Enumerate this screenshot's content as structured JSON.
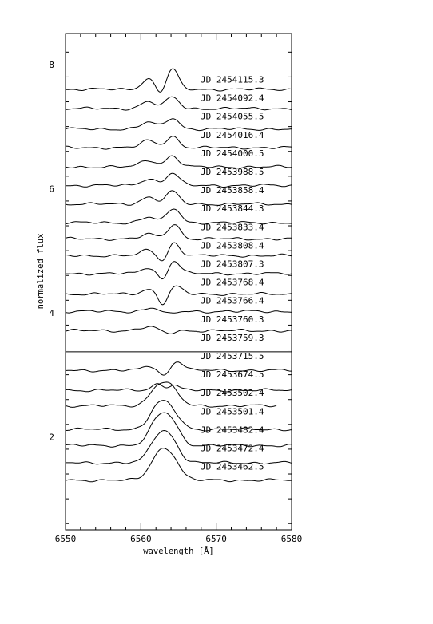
{
  "chart_data": {
    "type": "line",
    "title": "",
    "xlabel": "wavelength [Å]",
    "ylabel": "normalized flux",
    "xlim": [
      6550,
      6580
    ],
    "ylim": [
      0.5,
      8.5
    ],
    "x_ticks": [
      6550,
      6560,
      6570,
      6580
    ],
    "y_ticks": [
      2,
      4,
      6,
      8
    ],
    "grid": false,
    "separator_y": 3.37,
    "series": [
      {
        "name": "JD 2454115.3",
        "baseline": 7.6,
        "right_end": 6580,
        "features": [
          {
            "c": 6561.0,
            "a": 0.17,
            "w": 0.9
          },
          {
            "c": 6562.6,
            "a": -0.1,
            "w": 0.6
          },
          {
            "c": 6564.2,
            "a": 0.33,
            "w": 0.75
          }
        ]
      },
      {
        "name": "JD 2454092.4",
        "baseline": 7.29,
        "right_end": 6580,
        "features": [
          {
            "c": 6561.0,
            "a": 0.11,
            "w": 1.0
          },
          {
            "c": 6564.2,
            "a": 0.18,
            "w": 0.85
          }
        ]
      },
      {
        "name": "JD 2454055.5",
        "baseline": 6.96,
        "right_end": 6580,
        "features": [
          {
            "c": 6561.0,
            "a": 0.11,
            "w": 1.0
          },
          {
            "c": 6564.2,
            "a": 0.18,
            "w": 0.85
          }
        ]
      },
      {
        "name": "JD 2454016.4",
        "baseline": 6.66,
        "right_end": 6580,
        "features": [
          {
            "c": 6561.0,
            "a": 0.11,
            "w": 1.0
          },
          {
            "c": 6564.2,
            "a": 0.18,
            "w": 0.85
          }
        ]
      },
      {
        "name": "JD 2454000.5",
        "baseline": 6.35,
        "right_end": 6580,
        "features": [
          {
            "c": 6561.0,
            "a": 0.11,
            "w": 1.0
          },
          {
            "c": 6564.2,
            "a": 0.18,
            "w": 0.85
          }
        ]
      },
      {
        "name": "JD 2453988.5",
        "baseline": 6.05,
        "right_end": 6580,
        "features": [
          {
            "c": 6561.0,
            "a": 0.11,
            "w": 1.0
          },
          {
            "c": 6564.2,
            "a": 0.2,
            "w": 0.85
          }
        ]
      },
      {
        "name": "JD 2453858.4",
        "baseline": 5.75,
        "right_end": 6580,
        "features": [
          {
            "c": 6561.0,
            "a": 0.11,
            "w": 1.0
          },
          {
            "c": 6564.2,
            "a": 0.2,
            "w": 0.85
          }
        ]
      },
      {
        "name": "JD 2453844.3",
        "baseline": 5.45,
        "right_end": 6580,
        "features": [
          {
            "c": 6561.0,
            "a": 0.09,
            "w": 1.0
          },
          {
            "c": 6564.4,
            "a": 0.23,
            "w": 0.85
          }
        ]
      },
      {
        "name": "JD 2453833.4",
        "baseline": 5.19,
        "right_end": 6580,
        "features": [
          {
            "c": 6561.0,
            "a": 0.07,
            "w": 1.0
          },
          {
            "c": 6564.4,
            "a": 0.23,
            "w": 0.85
          }
        ]
      },
      {
        "name": "JD 2453808.4",
        "baseline": 4.92,
        "right_end": 6580,
        "features": [
          {
            "c": 6561.0,
            "a": 0.09,
            "w": 0.9
          },
          {
            "c": 6562.9,
            "a": -0.12,
            "w": 0.6
          },
          {
            "c": 6564.4,
            "a": 0.21,
            "w": 0.8
          }
        ]
      },
      {
        "name": "JD 2453807.3",
        "baseline": 4.63,
        "right_end": 6580,
        "features": [
          {
            "c": 6561.0,
            "a": 0.1,
            "w": 0.9
          },
          {
            "c": 6562.9,
            "a": -0.13,
            "w": 0.6
          },
          {
            "c": 6564.4,
            "a": 0.21,
            "w": 0.8
          }
        ]
      },
      {
        "name": "JD 2453768.4",
        "baseline": 4.3,
        "right_end": 6580,
        "features": [
          {
            "c": 6561.0,
            "a": 0.08,
            "w": 0.9
          },
          {
            "c": 6562.9,
            "a": -0.17,
            "w": 0.6
          },
          {
            "c": 6564.7,
            "a": 0.12,
            "w": 0.8
          }
        ]
      },
      {
        "name": "JD 2453766.4",
        "baseline": 4.02,
        "right_end": 6580,
        "features": [
          {
            "c": 6561.5,
            "a": 0.06,
            "w": 1.0
          },
          {
            "c": 6563.6,
            "a": -0.05,
            "w": 0.8
          }
        ]
      },
      {
        "name": "JD 2453760.3",
        "baseline": 3.71,
        "right_end": 6580,
        "features": [
          {
            "c": 6561.0,
            "a": 0.06,
            "w": 1.2
          },
          {
            "c": 6563.5,
            "a": -0.05,
            "w": 0.8
          }
        ]
      },
      {
        "name": "JD 2453759.3",
        "baseline": null,
        "right_end": 6580,
        "features": []
      },
      {
        "name": "JD 2453715.5",
        "baseline": 3.07,
        "right_end": 6580,
        "features": [
          {
            "c": 6561.2,
            "a": 0.07,
            "w": 0.9
          },
          {
            "c": 6563.0,
            "a": -0.1,
            "w": 0.6
          },
          {
            "c": 6564.9,
            "a": 0.15,
            "w": 0.8
          }
        ]
      },
      {
        "name": "JD 2453674.5",
        "baseline": 2.75,
        "right_end": 6580,
        "features": [
          {
            "c": 6562.2,
            "a": 0.1,
            "w": 0.8
          },
          {
            "c": 6564.4,
            "a": 0.08,
            "w": 0.7
          }
        ]
      },
      {
        "name": "JD 2453502.4",
        "baseline": 2.5,
        "right_end": 6578,
        "features": [
          {
            "c": 6562.2,
            "a": 0.27,
            "w": 1.15
          },
          {
            "c": 6564.0,
            "a": 0.25,
            "w": 1.15
          }
        ]
      },
      {
        "name": "JD 2453501.4",
        "baseline": 2.12,
        "right_end": 6580,
        "features": [
          {
            "c": 6562.2,
            "a": 0.33,
            "w": 1.15
          },
          {
            "c": 6564.0,
            "a": 0.28,
            "w": 1.15
          }
        ]
      },
      {
        "name": "JD 2453482.4",
        "baseline": 1.86,
        "right_end": 6580,
        "features": [
          {
            "c": 6562.2,
            "a": 0.36,
            "w": 1.15
          },
          {
            "c": 6564.0,
            "a": 0.36,
            "w": 1.15
          }
        ]
      },
      {
        "name": "JD 2453472.4",
        "baseline": 1.58,
        "right_end": 6580,
        "features": [
          {
            "c": 6562.2,
            "a": 0.36,
            "w": 1.15
          },
          {
            "c": 6564.0,
            "a": 0.34,
            "w": 1.15
          }
        ]
      },
      {
        "name": "JD 2453462.5",
        "baseline": 1.3,
        "right_end": 6580,
        "features": [
          {
            "c": 6562.2,
            "a": 0.34,
            "w": 1.15
          },
          {
            "c": 6564.0,
            "a": 0.36,
            "w": 1.15
          }
        ]
      }
    ]
  }
}
